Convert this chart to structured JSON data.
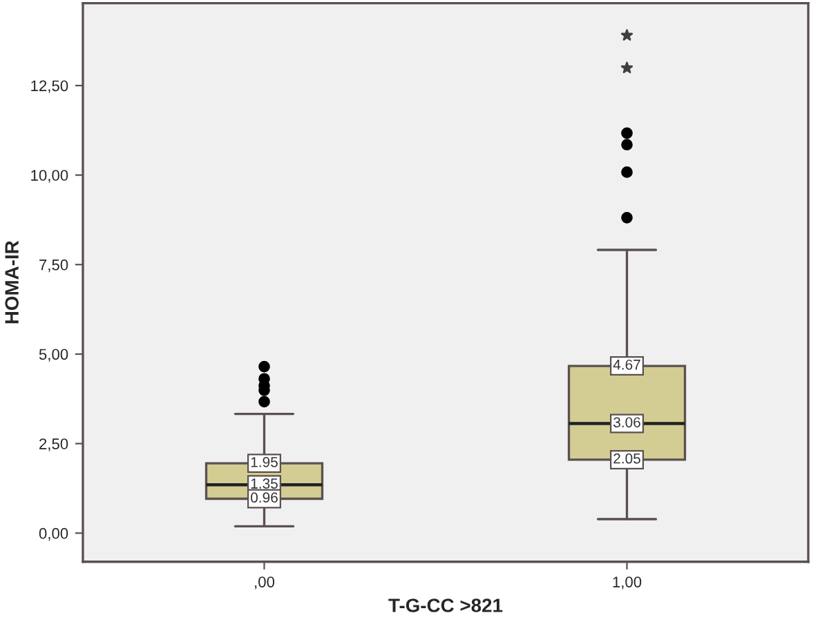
{
  "chart_data": {
    "type": "box",
    "xlabel": "T-G-CC >821",
    "ylabel": "HOMA-IR",
    "categories": [
      ",00",
      "1,00"
    ],
    "series": [
      {
        "color": "#d3cd93",
        "boxes": [
          {
            "low": 0.19,
            "q1": 0.96,
            "median": 1.35,
            "q3": 1.95,
            "high": 3.33,
            "outliers": [
              3.67,
              3.99,
              4.12,
              4.31,
              4.65
            ]
          },
          {
            "low": 0.39,
            "q1": 2.05,
            "median": 3.06,
            "q3": 4.67,
            "high": 7.91,
            "outliers": [
              8.81,
              10.08,
              10.85,
              11.17
            ]
          }
        ]
      },
      {
        "type": "scatter",
        "marker": "star",
        "color": "#404040",
        "x": [
          "1,00",
          "1,00"
        ],
        "values": [
          12.99,
          13.9
        ]
      }
    ],
    "annotations": [
      {
        "text": "1.95",
        "x": ",00",
        "y": 1.95
      },
      {
        "text": "1.35",
        "x": ",00",
        "y": 1.35
      },
      {
        "text": "0.96",
        "x": ",00",
        "y": 0.96
      },
      {
        "text": "4.67",
        "x": "1,00",
        "y": 4.67
      },
      {
        "text": "3.06",
        "x": "1,00",
        "y": 3.06
      },
      {
        "text": "2.05",
        "x": "1,00",
        "y": 2.05
      }
    ],
    "ylim": [
      -0.8,
      14.8
    ],
    "yticks": [
      {
        "value": 0,
        "label": "0,00"
      },
      {
        "value": 2.5,
        "label": "2,50"
      },
      {
        "value": 5,
        "label": "5,00"
      },
      {
        "value": 7.5,
        "label": "7,50"
      },
      {
        "value": 10,
        "label": "10,00"
      },
      {
        "value": 12.5,
        "label": "12,50"
      }
    ],
    "grid": false,
    "legend": false
  }
}
